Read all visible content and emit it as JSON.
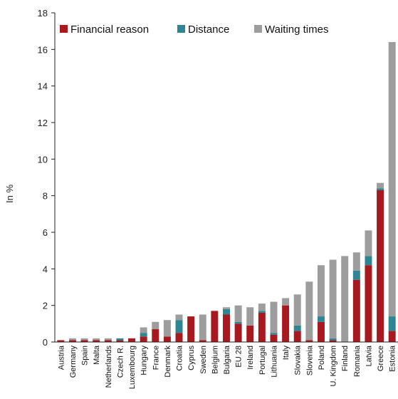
{
  "chart_data": {
    "type": "bar",
    "stacked": true,
    "ylabel": "In %",
    "ylim": [
      0,
      18
    ],
    "yticks": [
      0,
      2,
      4,
      6,
      8,
      10,
      12,
      14,
      16,
      18
    ],
    "grid": false,
    "legend_position": "top-left",
    "categories": [
      "Austria",
      "Germany",
      "Spain",
      "Malta",
      "Netherlands",
      "Czech R.",
      "Luxembourg",
      "Hungary",
      "France",
      "Denmark",
      "Croatia",
      "Cyprus",
      "Sweden",
      "Belgium",
      "Bulgaria",
      "EU 28",
      "Ireland",
      "Portugal",
      "Lithuania",
      "Italy",
      "Slovakia",
      "Slovenia",
      "Poland",
      "U. Kingdom",
      "Finland",
      "Romania",
      "Latvia",
      "Greece",
      "Estonia"
    ],
    "series": [
      {
        "name": "Financial reason",
        "color": "#a8191f",
        "values": [
          0.1,
          0.1,
          0.1,
          0.1,
          0.1,
          0.1,
          0.2,
          0.3,
          0.7,
          0.3,
          0.5,
          1.4,
          0.1,
          1.7,
          1.5,
          1.0,
          0.9,
          1.6,
          0.4,
          2.0,
          0.6,
          0.1,
          1.1,
          0.1,
          0.0,
          3.4,
          4.2,
          8.3,
          0.6
        ]
      },
      {
        "name": "Distance",
        "color": "#2e8593",
        "values": [
          0.0,
          0.0,
          0.0,
          0.0,
          0.0,
          0.1,
          0.0,
          0.2,
          0.0,
          0.0,
          0.7,
          0.0,
          0.0,
          0.0,
          0.3,
          0.1,
          0.0,
          0.1,
          0.1,
          0.0,
          0.3,
          0.0,
          0.3,
          0.1,
          0.0,
          0.5,
          0.5,
          0.1,
          0.8
        ]
      },
      {
        "name": "Waiting times",
        "color": "#9d9d9d",
        "values": [
          0.0,
          0.1,
          0.1,
          0.1,
          0.1,
          0.0,
          0.0,
          0.3,
          0.4,
          0.9,
          0.3,
          0.0,
          1.4,
          0.0,
          0.1,
          0.9,
          1.0,
          0.4,
          1.7,
          0.4,
          1.7,
          3.2,
          2.8,
          4.3,
          4.7,
          1.0,
          1.4,
          0.3,
          15.0
        ]
      }
    ]
  }
}
